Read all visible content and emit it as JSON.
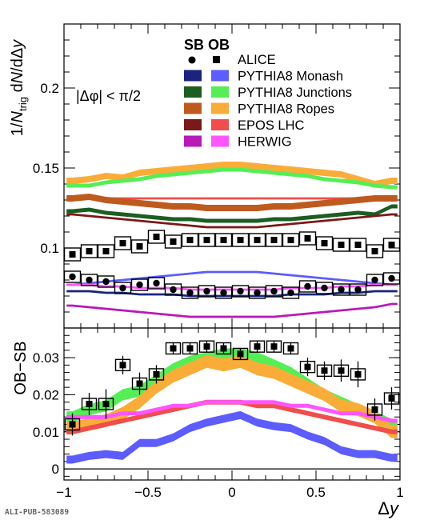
{
  "x_ticks": [
    "−1",
    "−0.5",
    "0",
    "0.5",
    "1"
  ],
  "footer": "ALI-PUB-583089",
  "legend": {
    "header": "SB OB",
    "entries": [
      {
        "label": "ALICE",
        "sb_color": "#000000",
        "ob_color": "#000000"
      },
      {
        "label": "PYTHIA8 Monash",
        "sb_color": "#1a237e",
        "ob_color": "#5c5cff"
      },
      {
        "label": "PYTHIA8 Junctions",
        "sb_color": "#1b5e20",
        "ob_color": "#55ee55"
      },
      {
        "label": "PYTHIA8 Ropes",
        "sb_color": "#bf5a1f",
        "ob_color": "#f9ad38"
      },
      {
        "label": "EPOS LHC",
        "sb_color": "#7b1818",
        "ob_color": "#f04d4d"
      },
      {
        "label": "HERWIG",
        "sb_color": "#b81ab8",
        "ob_color": "#ff55ff"
      }
    ]
  },
  "chart_data": [
    {
      "type": "line",
      "panel": "top",
      "ylabel": "1/N_trig dN/dΔy",
      "ylim": [
        0.05,
        0.24
      ],
      "y_ticks": [
        "0.1",
        "0.15",
        "0.2"
      ],
      "annotation": "|Δφ| < π/2",
      "x": [
        -0.95,
        -0.85,
        -0.75,
        -0.65,
        -0.55,
        -0.45,
        -0.35,
        -0.25,
        -0.15,
        -0.05,
        0.05,
        0.15,
        0.25,
        0.35,
        0.45,
        0.55,
        0.65,
        0.75,
        0.85,
        0.95
      ],
      "series": [
        {
          "name": "ALICE",
          "kind": "OB",
          "values": [
            0.096,
            0.098,
            0.098,
            0.103,
            0.101,
            0.107,
            0.104,
            0.105,
            0.105,
            0.105,
            0.105,
            0.105,
            0.105,
            0.105,
            0.106,
            0.103,
            0.102,
            0.102,
            0.098,
            0.102
          ]
        },
        {
          "name": "ALICE",
          "kind": "SB",
          "values": [
            0.082,
            0.08,
            0.079,
            0.075,
            0.077,
            0.078,
            0.074,
            0.072,
            0.073,
            0.072,
            0.073,
            0.072,
            0.073,
            0.072,
            0.076,
            0.075,
            0.074,
            0.074,
            0.08,
            0.081
          ]
        },
        {
          "name": "PYTHIA8 Ropes",
          "kind": "OB",
          "values": [
            0.142,
            0.143,
            0.145,
            0.144,
            0.147,
            0.148,
            0.149,
            0.15,
            0.151,
            0.152,
            0.152,
            0.151,
            0.15,
            0.149,
            0.148,
            0.147,
            0.146,
            0.143,
            0.14,
            0.142
          ]
        },
        {
          "name": "PYTHIA8 Junctions",
          "kind": "OB",
          "values": [
            0.139,
            0.139,
            0.141,
            0.142,
            0.143,
            0.145,
            0.146,
            0.147,
            0.148,
            0.149,
            0.149,
            0.148,
            0.147,
            0.146,
            0.145,
            0.143,
            0.142,
            0.141,
            0.139,
            0.138
          ]
        },
        {
          "name": "EPOS LHC",
          "kind": "OB",
          "values": [
            0.131,
            0.131,
            0.131,
            0.131,
            0.131,
            0.131,
            0.131,
            0.131,
            0.131,
            0.131,
            0.131,
            0.131,
            0.131,
            0.131,
            0.131,
            0.131,
            0.131,
            0.131,
            0.131,
            0.13
          ]
        },
        {
          "name": "PYTHIA8 Ropes",
          "kind": "SB",
          "values": [
            0.131,
            0.132,
            0.13,
            0.129,
            0.128,
            0.127,
            0.126,
            0.126,
            0.125,
            0.125,
            0.125,
            0.125,
            0.126,
            0.126,
            0.127,
            0.128,
            0.129,
            0.13,
            0.131,
            0.131
          ]
        },
        {
          "name": "PYTHIA8 Junctions",
          "kind": "SB",
          "values": [
            0.123,
            0.124,
            0.122,
            0.121,
            0.12,
            0.119,
            0.118,
            0.118,
            0.117,
            0.117,
            0.117,
            0.117,
            0.118,
            0.118,
            0.119,
            0.12,
            0.121,
            0.122,
            0.121,
            0.126
          ]
        },
        {
          "name": "EPOS LHC",
          "kind": "SB",
          "values": [
            0.121,
            0.12,
            0.119,
            0.118,
            0.117,
            0.116,
            0.115,
            0.114,
            0.113,
            0.113,
            0.113,
            0.113,
            0.114,
            0.115,
            0.116,
            0.117,
            0.118,
            0.119,
            0.12,
            0.121
          ]
        },
        {
          "name": "PYTHIA8 Monash",
          "kind": "OB",
          "values": [
            0.077,
            0.078,
            0.079,
            0.08,
            0.081,
            0.082,
            0.083,
            0.084,
            0.085,
            0.085,
            0.085,
            0.085,
            0.084,
            0.083,
            0.082,
            0.081,
            0.08,
            0.079,
            0.078,
            0.077
          ]
        },
        {
          "name": "HERWIG",
          "kind": "OB",
          "values": [
            0.077,
            0.077,
            0.076,
            0.076,
            0.075,
            0.075,
            0.075,
            0.074,
            0.074,
            0.074,
            0.074,
            0.074,
            0.074,
            0.075,
            0.075,
            0.075,
            0.076,
            0.076,
            0.077,
            0.077
          ]
        },
        {
          "name": "PYTHIA8 Monash",
          "kind": "SB",
          "values": [
            0.073,
            0.073,
            0.072,
            0.072,
            0.071,
            0.071,
            0.071,
            0.07,
            0.07,
            0.07,
            0.07,
            0.07,
            0.07,
            0.071,
            0.071,
            0.071,
            0.072,
            0.072,
            0.073,
            0.073
          ]
        },
        {
          "name": "HERWIG",
          "kind": "SB",
          "values": [
            0.064,
            0.063,
            0.062,
            0.061,
            0.06,
            0.059,
            0.058,
            0.057,
            0.057,
            0.057,
            0.057,
            0.057,
            0.057,
            0.058,
            0.059,
            0.06,
            0.061,
            0.062,
            0.063,
            0.065
          ]
        }
      ]
    },
    {
      "type": "line",
      "panel": "bottom",
      "ylabel": "OB−SB",
      "xlabel": "Δy",
      "xlim": [
        -1,
        1
      ],
      "ylim": [
        -0.003,
        0.038
      ],
      "y_ticks": [
        "0",
        "0.01",
        "0.02",
        "0.03"
      ],
      "x": [
        -0.95,
        -0.85,
        -0.75,
        -0.65,
        -0.55,
        -0.45,
        -0.35,
        -0.25,
        -0.15,
        -0.05,
        0.05,
        0.15,
        0.25,
        0.35,
        0.45,
        0.55,
        0.65,
        0.75,
        0.85,
        0.95
      ],
      "series": [
        {
          "name": "PYTHIA8 Junctions",
          "values": [
            0.014,
            0.016,
            0.017,
            0.02,
            0.021,
            0.024,
            0.027,
            0.029,
            0.03,
            0.031,
            0.031,
            0.03,
            0.028,
            0.026,
            0.023,
            0.02,
            0.018,
            0.016,
            0.014,
            0.012
          ]
        },
        {
          "name": "PYTHIA8 Ropes",
          "values": [
            0.011,
            0.012,
            0.013,
            0.015,
            0.018,
            0.022,
            0.025,
            0.027,
            0.029,
            0.028,
            0.029,
            0.027,
            0.026,
            0.024,
            0.022,
            0.02,
            0.017,
            0.016,
            0.014,
            0.01
          ]
        },
        {
          "name": "EPOS LHC",
          "values": [
            0.01,
            0.011,
            0.012,
            0.013,
            0.014,
            0.015,
            0.016,
            0.017,
            0.018,
            0.018,
            0.018,
            0.017,
            0.017,
            0.016,
            0.015,
            0.014,
            0.013,
            0.012,
            0.011,
            0.01
          ]
        },
        {
          "name": "HERWIG",
          "values": [
            0.014,
            0.014,
            0.014,
            0.015,
            0.015,
            0.016,
            0.017,
            0.017,
            0.018,
            0.018,
            0.018,
            0.018,
            0.018,
            0.017,
            0.017,
            0.016,
            0.015,
            0.015,
            0.014,
            0.013
          ]
        },
        {
          "name": "PYTHIA8 Monash",
          "values": [
            0.0025,
            0.0035,
            0.004,
            0.0035,
            0.007,
            0.007,
            0.0085,
            0.011,
            0.0125,
            0.0135,
            0.0145,
            0.0125,
            0.0115,
            0.011,
            0.009,
            0.0075,
            0.005,
            0.004,
            0.004,
            0.003
          ]
        },
        {
          "name": "ALICE",
          "values": [
            0.012,
            0.0175,
            0.0175,
            0.028,
            0.023,
            0.0255,
            0.0325,
            0.0325,
            0.033,
            0.0325,
            0.031,
            0.033,
            0.033,
            0.0325,
            0.0275,
            0.0265,
            0.0265,
            0.0255,
            0.016,
            0.019
          ],
          "errors": [
            0.003,
            0.003,
            0.004,
            0.0025,
            0.003,
            0.0025,
            0.0015,
            0.0015,
            0.0015,
            0.0015,
            0.0015,
            0.0015,
            0.0015,
            0.0015,
            0.0025,
            0.0025,
            0.003,
            0.0035,
            0.003,
            0.003
          ]
        }
      ]
    }
  ]
}
